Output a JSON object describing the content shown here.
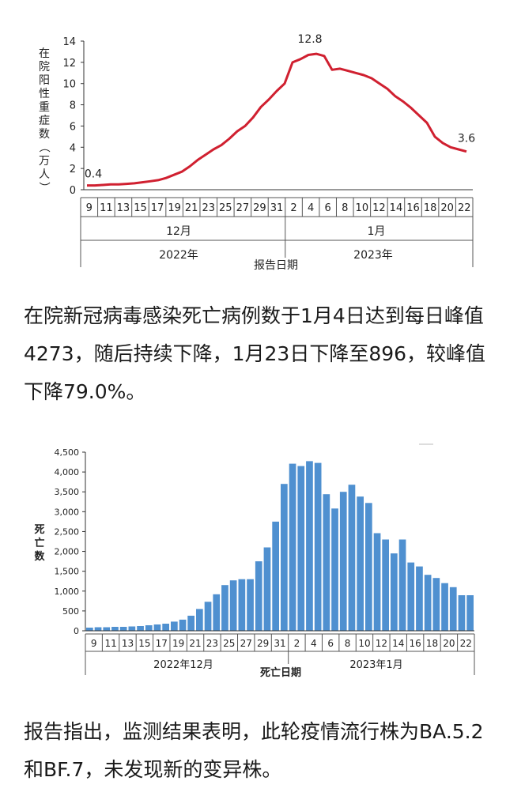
{
  "paragraph1": "在院新冠病毒感染死亡病例数于1月4日达到每日峰值4273，随后持续下降，1月23日下降至896，较峰值下降79.0%。",
  "paragraph2": "报告指出，监测结果表明，此轮疫情流行株为BA.5.2和BF.7，未发现新的变异株。",
  "chart_data": [
    {
      "type": "line",
      "title": "",
      "ylabel": "在院阳性重症数（万人）",
      "xlabel": "报告日期",
      "ylim": [
        0,
        14
      ],
      "yticks": [
        0,
        2,
        4,
        6,
        8,
        10,
        12,
        14
      ],
      "color": "#d02030",
      "x_tick_labels": [
        "9",
        "11",
        "13",
        "15",
        "17",
        "19",
        "21",
        "23",
        "25",
        "27",
        "29",
        "31",
        "2",
        "4",
        "6",
        "8",
        "10",
        "12",
        "14",
        "16",
        "18",
        "20",
        "22"
      ],
      "month_labels": [
        "12月",
        "1月"
      ],
      "year_labels": [
        "2022年",
        "2023年"
      ],
      "annotations": [
        "0.4",
        "12.8",
        "3.6"
      ],
      "series": [
        {
          "values": [
            0.4,
            0.4,
            0.45,
            0.5,
            0.5,
            0.55,
            0.6,
            0.7,
            0.8,
            0.9,
            1.1,
            1.4,
            1.7,
            2.2,
            2.8,
            3.3,
            3.8,
            4.2,
            4.8,
            5.5,
            6.0,
            6.8,
            7.8,
            8.5,
            9.3,
            10.0,
            12.0,
            12.3,
            12.7,
            12.8,
            12.6,
            11.3,
            11.4,
            11.2,
            11.0,
            10.8,
            10.5,
            10.0,
            9.5,
            8.8,
            8.3,
            7.7,
            7.0,
            6.3,
            5.0,
            4.4,
            4.0,
            3.8,
            3.6
          ]
        }
      ]
    },
    {
      "type": "bar",
      "title": "",
      "ylabel": "死亡数",
      "xlabel": "死亡日期",
      "ylim": [
        0,
        4500
      ],
      "yticks": [
        "0",
        "500",
        "1,000",
        "1,500",
        "2,000",
        "2,500",
        "3,000",
        "3,500",
        "4,000",
        "4,500"
      ],
      "color": "#4f90d0",
      "x_tick_labels": [
        "9",
        "11",
        "13",
        "15",
        "17",
        "19",
        "21",
        "23",
        "25",
        "27",
        "29",
        "31",
        "2",
        "4",
        "6",
        "8",
        "10",
        "12",
        "14",
        "16",
        "18",
        "20",
        "22"
      ],
      "month_labels": [
        "2022年12月",
        "2023年1月"
      ],
      "series": [
        {
          "values": [
            80,
            90,
            90,
            100,
            100,
            110,
            120,
            140,
            160,
            180,
            230,
            280,
            380,
            550,
            730,
            920,
            1150,
            1270,
            1300,
            1300,
            1750,
            2100,
            2750,
            3700,
            4210,
            4150,
            4273,
            4230,
            3440,
            3080,
            3500,
            3680,
            3380,
            3220,
            2460,
            2300,
            1950,
            2300,
            1720,
            1620,
            1410,
            1330,
            1200,
            1100,
            896,
            896
          ]
        }
      ]
    }
  ]
}
